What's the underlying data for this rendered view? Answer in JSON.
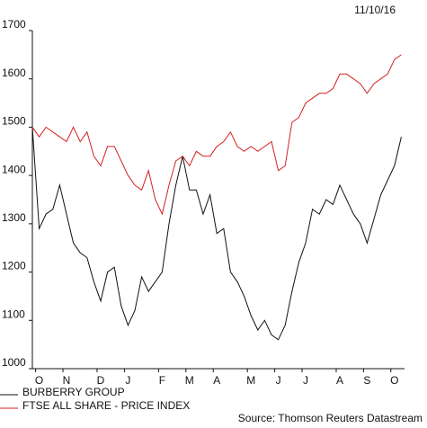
{
  "chart_data": {
    "type": "line",
    "date": "11/10/16",
    "source": "Source: Thomson Reuters Datastream",
    "categories": [
      null,
      "O",
      null,
      null,
      null,
      "N",
      null,
      null,
      null,
      null,
      "D",
      null,
      null,
      null,
      "J",
      null,
      null,
      null,
      null,
      "F",
      null,
      null,
      null,
      "M",
      null,
      null,
      null,
      "A",
      null,
      null,
      null,
      null,
      "M",
      null,
      null,
      null,
      "J",
      null,
      null,
      null,
      "J",
      null,
      null,
      null,
      null,
      "A",
      null,
      null,
      null,
      "S",
      null,
      null,
      null,
      "O",
      null
    ],
    "series": [
      {
        "name": "BURBERRY GROUP",
        "color": "#111111",
        "values": [
          1500,
          1290,
          1320,
          1330,
          1380,
          1320,
          1260,
          1240,
          1230,
          1180,
          1140,
          1200,
          1210,
          1130,
          1090,
          1120,
          1190,
          1160,
          1180,
          1200,
          1300,
          1380,
          1440,
          1370,
          1370,
          1320,
          1360,
          1280,
          1290,
          1200,
          1180,
          1150,
          1110,
          1080,
          1100,
          1070,
          1060,
          1090,
          1160,
          1220,
          1260,
          1330,
          1320,
          1350,
          1340,
          1380,
          1350,
          1320,
          1300,
          1260,
          1310,
          1360,
          1390,
          1420,
          1480
        ]
      },
      {
        "name": "FTSE ALL SHARE - PRICE INDEX",
        "color": "#d42020",
        "values": [
          1500,
          1480,
          1500,
          1490,
          1480,
          1470,
          1500,
          1470,
          1490,
          1440,
          1420,
          1460,
          1460,
          1430,
          1400,
          1380,
          1370,
          1410,
          1350,
          1320,
          1380,
          1430,
          1440,
          1420,
          1450,
          1440,
          1440,
          1460,
          1470,
          1490,
          1460,
          1450,
          1460,
          1450,
          1460,
          1470,
          1410,
          1420,
          1510,
          1520,
          1550,
          1560,
          1570,
          1570,
          1580,
          1610,
          1610,
          1600,
          1590,
          1570,
          1590,
          1600,
          1610,
          1640,
          1650
        ]
      }
    ],
    "ylim": [
      1000,
      1700
    ],
    "yticks": [
      1000,
      1100,
      1200,
      1300,
      1400,
      1500,
      1600,
      1700
    ]
  }
}
